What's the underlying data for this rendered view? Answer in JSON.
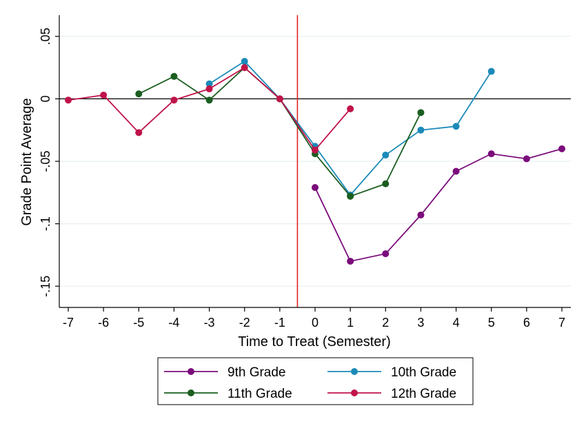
{
  "chart_data": {
    "type": "line",
    "xlabel": "Time to Treat (Semester)",
    "ylabel": "Grade Point Average",
    "xlim": [
      -7,
      7
    ],
    "ylim": [
      -0.167,
      0.067
    ],
    "x_ticks": [
      -7,
      -6,
      -5,
      -4,
      -3,
      -2,
      -1,
      0,
      1,
      2,
      3,
      4,
      5,
      6,
      7
    ],
    "x_tick_labels": [
      "-7",
      "-6",
      "-5",
      "-4",
      "-3",
      "-2",
      "-1",
      "0",
      "1",
      "2",
      "3",
      "4",
      "5",
      "6",
      "7"
    ],
    "y_ticks": [
      0.05,
      0,
      -0.05,
      -0.1,
      -0.15
    ],
    "y_tick_labels": [
      ".05",
      "0",
      "-.05",
      "-.1",
      "-.15"
    ],
    "grid": true,
    "zero_line": 0,
    "vertical_reference_line": -0.5,
    "legend_position": "bottom",
    "series": [
      {
        "name": "9th Grade",
        "color": "#7b0c7b",
        "x": [
          0,
          1,
          2,
          3,
          4,
          5,
          6,
          7
        ],
        "y": [
          -0.071,
          -0.13,
          -0.124,
          -0.093,
          -0.058,
          -0.044,
          -0.048,
          -0.04
        ]
      },
      {
        "name": "10th Grade",
        "color": "#1b8ab8",
        "x": [
          -3,
          -2,
          -1,
          0,
          1,
          2,
          3,
          4,
          5
        ],
        "y": [
          0.012,
          0.03,
          0.0,
          -0.038,
          -0.077,
          -0.045,
          -0.025,
          -0.022,
          0.022
        ]
      },
      {
        "name": "11th Grade",
        "color": "#1b5e20",
        "x": [
          -5,
          -4,
          -3,
          -2,
          -1,
          0,
          1,
          2,
          3
        ],
        "y": [
          0.004,
          0.018,
          -0.001,
          0.025,
          0.0,
          -0.044,
          -0.078,
          -0.068,
          -0.011
        ]
      },
      {
        "name": "12th Grade",
        "color": "#c0134a",
        "x": [
          -7,
          -6,
          -5,
          -4,
          -3,
          -2,
          -1,
          0,
          1
        ],
        "y": [
          -0.001,
          0.003,
          -0.027,
          -0.001,
          0.008,
          0.025,
          0.0,
          -0.041,
          -0.008
        ]
      }
    ],
    "colors": {
      "reference_line": "#e02020",
      "grid": "#e6eef2",
      "zero_line": "#000000"
    }
  }
}
